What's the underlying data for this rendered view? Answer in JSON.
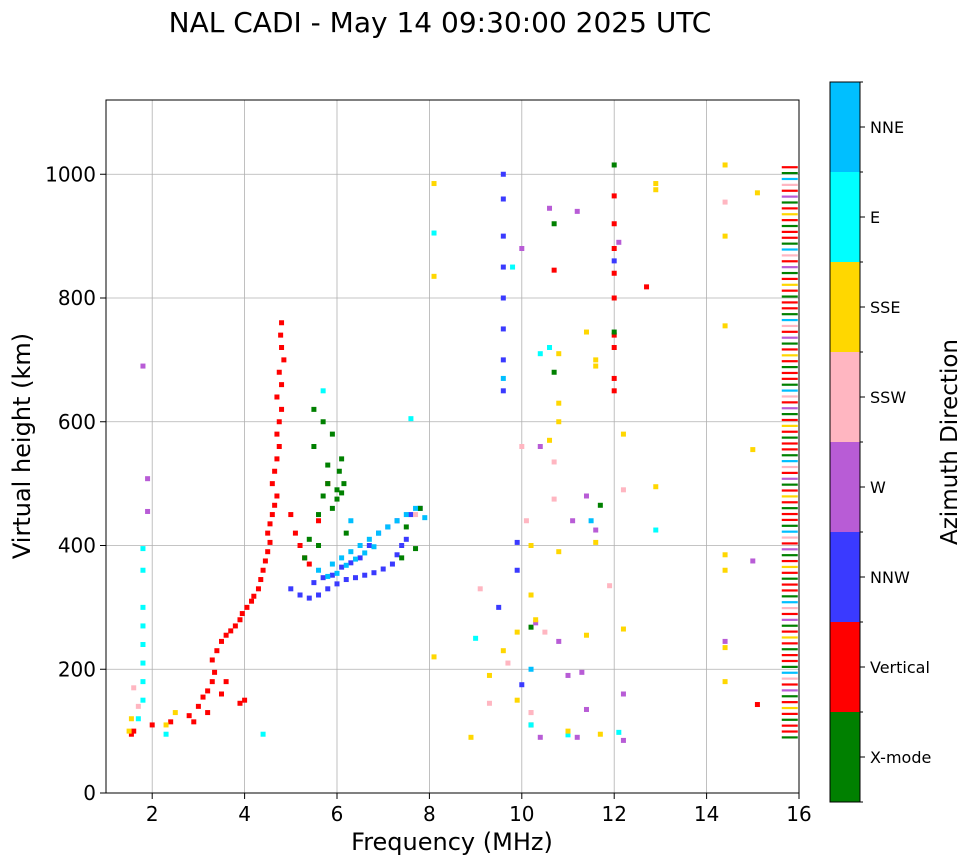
{
  "chart_data": {
    "type": "scatter",
    "title": "NAL CADI - May 14 09:30:00 2025 UTC",
    "xlabel": "Frequency (MHz)",
    "ylabel": "Virtual height (km)",
    "xlim": [
      1,
      16
    ],
    "ylim": [
      0,
      1120
    ],
    "xticks": [
      2,
      4,
      6,
      8,
      10,
      12,
      14,
      16
    ],
    "yticks": [
      0,
      200,
      400,
      600,
      800,
      1000
    ],
    "grid": true,
    "colorbar": {
      "label": "Azimuth Direction",
      "entries": [
        {
          "name": "X-mode",
          "color": "#008000"
        },
        {
          "name": "Vertical",
          "color": "#ff0000"
        },
        {
          "name": "NNW",
          "color": "#3a3aff"
        },
        {
          "name": "W",
          "color": "#b85cd6"
        },
        {
          "name": "SSW",
          "color": "#ffb6c1"
        },
        {
          "name": "SSE",
          "color": "#ffd700"
        },
        {
          "name": "E",
          "color": "#00ffff"
        },
        {
          "name": "NNE",
          "color": "#00bfff"
        }
      ]
    },
    "series": [
      {
        "name": "Vertical",
        "points": [
          [
            1.55,
            95
          ],
          [
            1.6,
            100
          ],
          [
            2.0,
            110
          ],
          [
            2.4,
            115
          ],
          [
            2.8,
            125
          ],
          [
            3.0,
            140
          ],
          [
            3.1,
            155
          ],
          [
            3.2,
            165
          ],
          [
            3.3,
            180
          ],
          [
            3.35,
            195
          ],
          [
            3.3,
            215
          ],
          [
            3.4,
            230
          ],
          [
            3.5,
            245
          ],
          [
            3.6,
            255
          ],
          [
            3.7,
            262
          ],
          [
            3.8,
            270
          ],
          [
            3.9,
            280
          ],
          [
            3.95,
            290
          ],
          [
            4.05,
            300
          ],
          [
            4.15,
            310
          ],
          [
            4.2,
            318
          ],
          [
            4.3,
            330
          ],
          [
            4.35,
            345
          ],
          [
            4.4,
            360
          ],
          [
            4.45,
            375
          ],
          [
            4.5,
            390
          ],
          [
            4.55,
            405
          ],
          [
            4.5,
            420
          ],
          [
            4.55,
            435
          ],
          [
            4.6,
            450
          ],
          [
            4.65,
            465
          ],
          [
            4.7,
            480
          ],
          [
            4.6,
            500
          ],
          [
            4.65,
            520
          ],
          [
            4.7,
            540
          ],
          [
            4.75,
            560
          ],
          [
            4.7,
            580
          ],
          [
            4.75,
            600
          ],
          [
            4.8,
            620
          ],
          [
            4.7,
            640
          ],
          [
            4.8,
            660
          ],
          [
            4.75,
            680
          ],
          [
            4.85,
            700
          ],
          [
            4.8,
            720
          ],
          [
            4.78,
            740
          ],
          [
            4.8,
            760
          ],
          [
            5.0,
            450
          ],
          [
            5.1,
            420
          ],
          [
            5.2,
            400
          ],
          [
            5.3,
            380
          ],
          [
            5.4,
            370
          ],
          [
            3.6,
            180
          ],
          [
            3.5,
            160
          ],
          [
            3.9,
            145
          ],
          [
            4.0,
            150
          ],
          [
            2.9,
            115
          ],
          [
            3.2,
            130
          ],
          [
            12.0,
            650
          ],
          [
            12.0,
            670
          ],
          [
            12.0,
            720
          ],
          [
            12.0,
            740
          ],
          [
            12.0,
            800
          ],
          [
            12.0,
            840
          ],
          [
            12.0,
            880
          ],
          [
            12.0,
            920
          ],
          [
            12.0,
            965
          ],
          [
            12.7,
            818
          ],
          [
            10.7,
            845
          ],
          [
            15.1,
            143
          ],
          [
            5.6,
            440
          ],
          [
            5.8,
            500
          ]
        ]
      },
      {
        "name": "NNW",
        "points": [
          [
            5.0,
            330
          ],
          [
            5.2,
            320
          ],
          [
            5.4,
            315
          ],
          [
            5.6,
            320
          ],
          [
            5.8,
            330
          ],
          [
            6.0,
            338
          ],
          [
            6.2,
            345
          ],
          [
            6.4,
            348
          ],
          [
            6.6,
            352
          ],
          [
            6.8,
            356
          ],
          [
            7.0,
            362
          ],
          [
            7.2,
            370
          ],
          [
            7.3,
            385
          ],
          [
            7.4,
            400
          ],
          [
            7.5,
            410
          ],
          [
            5.5,
            340
          ],
          [
            5.7,
            348
          ],
          [
            5.9,
            352
          ],
          [
            6.1,
            365
          ],
          [
            6.3,
            372
          ],
          [
            6.5,
            380
          ],
          [
            6.7,
            400
          ],
          [
            6.9,
            420
          ],
          [
            7.1,
            430
          ],
          [
            7.3,
            440
          ],
          [
            7.6,
            450
          ],
          [
            7.8,
            460
          ],
          [
            9.6,
            1000
          ],
          [
            9.6,
            960
          ],
          [
            9.6,
            900
          ],
          [
            9.6,
            850
          ],
          [
            9.6,
            800
          ],
          [
            9.6,
            750
          ],
          [
            9.6,
            700
          ],
          [
            9.6,
            650
          ],
          [
            9.5,
            300
          ],
          [
            10.0,
            175
          ],
          [
            9.9,
            360
          ],
          [
            12.0,
            860
          ],
          [
            9.9,
            405
          ]
        ]
      },
      {
        "name": "X-mode",
        "points": [
          [
            5.6,
            450
          ],
          [
            5.7,
            480
          ],
          [
            5.8,
            500
          ],
          [
            5.9,
            460
          ],
          [
            6.0,
            490
          ],
          [
            6.05,
            520
          ],
          [
            6.1,
            540
          ],
          [
            5.7,
            600
          ],
          [
            5.5,
            560
          ],
          [
            5.9,
            580
          ],
          [
            6.2,
            420
          ],
          [
            5.3,
            380
          ],
          [
            5.4,
            410
          ],
          [
            5.6,
            400
          ],
          [
            6.1,
            485
          ],
          [
            6.15,
            500
          ],
          [
            6.0,
            475
          ],
          [
            5.8,
            530
          ],
          [
            7.8,
            460
          ],
          [
            7.5,
            430
          ],
          [
            7.4,
            380
          ],
          [
            10.7,
            680
          ],
          [
            10.7,
            920
          ],
          [
            11.7,
            465
          ],
          [
            12.0,
            1015
          ],
          [
            10.2,
            268
          ],
          [
            10.2,
            110
          ],
          [
            12.0,
            745
          ],
          [
            7.7,
            395
          ],
          [
            5.5,
            620
          ]
        ]
      },
      {
        "name": "NNE",
        "points": [
          [
            5.9,
            370
          ],
          [
            6.1,
            380
          ],
          [
            6.3,
            390
          ],
          [
            6.5,
            400
          ],
          [
            6.7,
            410
          ],
          [
            6.9,
            420
          ],
          [
            7.1,
            430
          ],
          [
            7.3,
            440
          ],
          [
            7.5,
            450
          ],
          [
            7.7,
            460
          ],
          [
            6.0,
            355
          ],
          [
            6.2,
            368
          ],
          [
            6.4,
            378
          ],
          [
            6.6,
            388
          ],
          [
            6.8,
            398
          ],
          [
            5.6,
            360
          ],
          [
            5.8,
            350
          ],
          [
            6.3,
            440
          ],
          [
            7.9,
            445
          ],
          [
            11.5,
            440
          ],
          [
            9.6,
            670
          ],
          [
            10.2,
            200
          ]
        ]
      },
      {
        "name": "E",
        "points": [
          [
            1.8,
            395
          ],
          [
            1.8,
            360
          ],
          [
            1.8,
            300
          ],
          [
            1.8,
            270
          ],
          [
            1.8,
            240
          ],
          [
            1.8,
            210
          ],
          [
            1.8,
            180
          ],
          [
            1.8,
            150
          ],
          [
            1.7,
            120
          ],
          [
            2.3,
            95
          ],
          [
            4.4,
            95
          ],
          [
            5.7,
            650
          ],
          [
            7.6,
            605
          ],
          [
            8.1,
            905
          ],
          [
            9.0,
            250
          ],
          [
            9.8,
            850
          ],
          [
            10.4,
            710
          ],
          [
            10.6,
            720
          ],
          [
            12.9,
            425
          ],
          [
            12.1,
            98
          ],
          [
            11.0,
            94
          ],
          [
            10.2,
            110
          ]
        ]
      },
      {
        "name": "W",
        "points": [
          [
            1.9,
            508
          ],
          [
            1.8,
            690
          ],
          [
            1.9,
            455
          ],
          [
            10.0,
            880
          ],
          [
            10.4,
            560
          ],
          [
            10.6,
            945
          ],
          [
            11.2,
            940
          ],
          [
            11.1,
            440
          ],
          [
            11.4,
            480
          ],
          [
            11.6,
            425
          ],
          [
            12.1,
            890
          ],
          [
            12.2,
            160
          ],
          [
            11.4,
            135
          ],
          [
            11.3,
            195
          ],
          [
            11.0,
            190
          ],
          [
            14.4,
            245
          ],
          [
            15.0,
            375
          ],
          [
            10.3,
            275
          ],
          [
            10.8,
            245
          ],
          [
            10.4,
            90
          ],
          [
            11.2,
            90
          ],
          [
            12.2,
            85
          ]
        ]
      },
      {
        "name": "SSW",
        "points": [
          [
            1.6,
            170
          ],
          [
            1.7,
            140
          ],
          [
            7.7,
            450
          ],
          [
            9.1,
            330
          ],
          [
            9.3,
            145
          ],
          [
            10.0,
            560
          ],
          [
            10.7,
            535
          ],
          [
            10.7,
            475
          ],
          [
            11.9,
            335
          ],
          [
            12.2,
            490
          ],
          [
            14.4,
            955
          ],
          [
            10.1,
            440
          ],
          [
            10.5,
            260
          ],
          [
            10.2,
            130
          ],
          [
            9.7,
            210
          ],
          [
            10.2,
            130
          ]
        ]
      },
      {
        "name": "SSE",
        "points": [
          [
            1.5,
            100
          ],
          [
            1.55,
            120
          ],
          [
            2.3,
            110
          ],
          [
            2.5,
            130
          ],
          [
            8.1,
            985
          ],
          [
            8.1,
            835
          ],
          [
            8.1,
            220
          ],
          [
            8.9,
            90
          ],
          [
            9.3,
            190
          ],
          [
            9.6,
            230
          ],
          [
            9.9,
            260
          ],
          [
            10.2,
            320
          ],
          [
            10.2,
            400
          ],
          [
            10.8,
            390
          ],
          [
            10.8,
            600
          ],
          [
            10.8,
            630
          ],
          [
            10.8,
            710
          ],
          [
            10.6,
            570
          ],
          [
            11.4,
            745
          ],
          [
            11.6,
            700
          ],
          [
            11.6,
            690
          ],
          [
            12.2,
            580
          ],
          [
            12.2,
            265
          ],
          [
            11.4,
            255
          ],
          [
            11.6,
            405
          ],
          [
            12.9,
            985
          ],
          [
            12.9,
            975
          ],
          [
            12.9,
            495
          ],
          [
            14.4,
            1015
          ],
          [
            15.1,
            970
          ],
          [
            14.4,
            900
          ],
          [
            14.4,
            755
          ],
          [
            14.4,
            385
          ],
          [
            14.4,
            360
          ],
          [
            14.4,
            235
          ],
          [
            14.4,
            180
          ],
          [
            15.0,
            555
          ],
          [
            11.7,
            95
          ],
          [
            10.3,
            280
          ],
          [
            9.9,
            150
          ],
          [
            11.0,
            100
          ]
        ]
      }
    ],
    "edge_column": {
      "x": 15.8,
      "y_range": [
        90,
        1015
      ],
      "row_step": 9.5,
      "colors": [
        "X-mode",
        "Vertical",
        "Vertical",
        "X-mode",
        "Vertical",
        "SSE",
        "Vertical",
        "X-mode",
        "W",
        "Vertical",
        "SSW",
        "NNE"
      ]
    }
  }
}
